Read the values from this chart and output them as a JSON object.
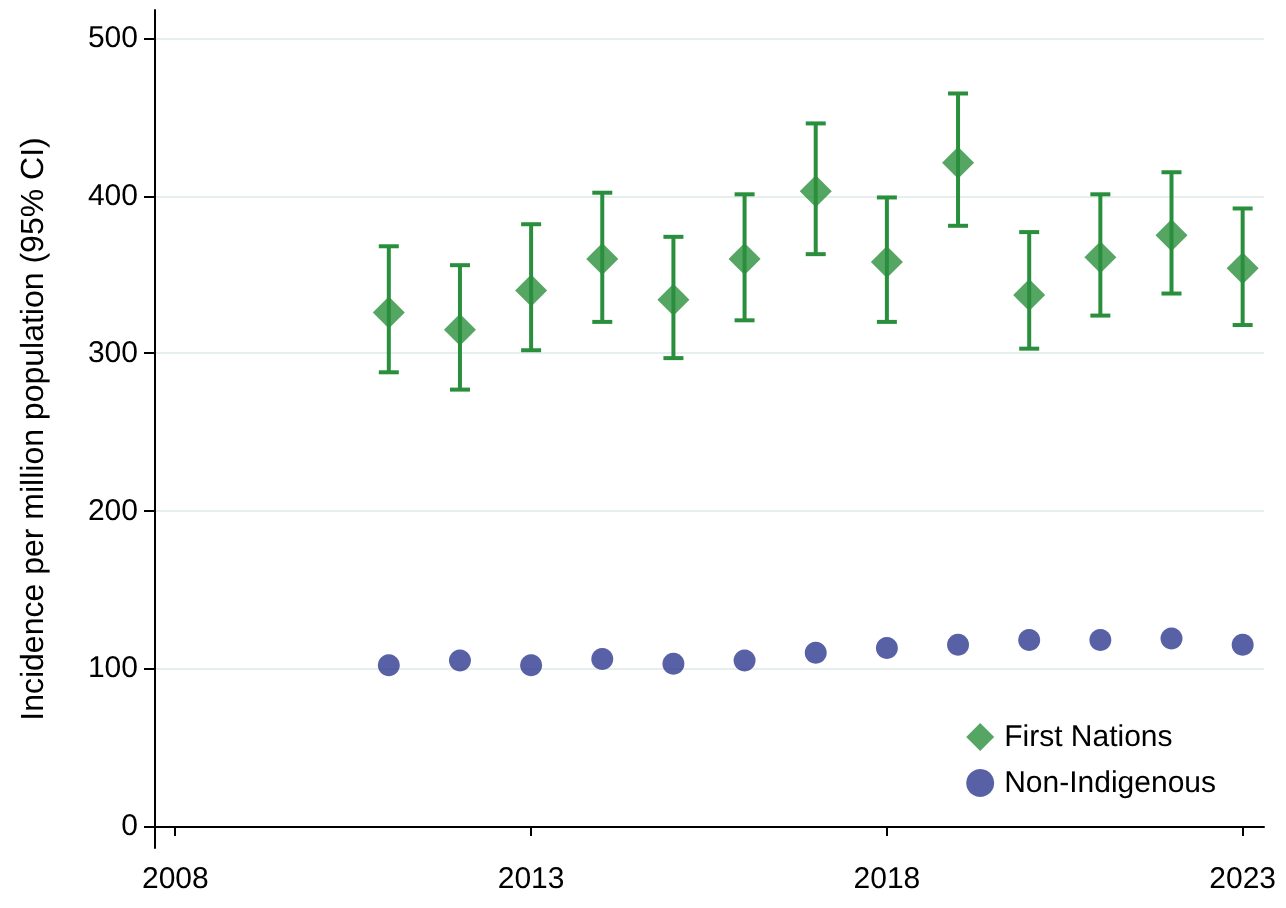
{
  "chart_data": {
    "type": "scatter",
    "ylabel": "Incidence per million population (95% CI)",
    "x": [
      2011,
      2012,
      2013,
      2014,
      2015,
      2016,
      2017,
      2018,
      2019,
      2020,
      2021,
      2022,
      2023
    ],
    "series": [
      {
        "name": "First Nations",
        "color": "#2a8f3c",
        "marker": "diamond",
        "values": [
          326,
          315,
          340,
          360,
          334,
          360,
          403,
          358,
          421,
          337,
          361,
          375,
          354
        ],
        "errors": [
          [
            288,
            368
          ],
          [
            277,
            356
          ],
          [
            302,
            382
          ],
          [
            320,
            402
          ],
          [
            297,
            374
          ],
          [
            321,
            401
          ],
          [
            363,
            446
          ],
          [
            320,
            399
          ],
          [
            381,
            465
          ],
          [
            303,
            377
          ],
          [
            324,
            401
          ],
          [
            338,
            415
          ],
          [
            318,
            392
          ]
        ]
      },
      {
        "name": "Non-Indigenous",
        "color": "#2e3a8f",
        "marker": "circle",
        "values": [
          102,
          105,
          102,
          106,
          103,
          105,
          110,
          113,
          115,
          118,
          118,
          119,
          115
        ]
      }
    ],
    "xlim": [
      2007.7,
      2023.3
    ],
    "xticks": [
      2008,
      2013,
      2018,
      2023
    ],
    "ylim": [
      -14,
      518
    ],
    "yticks": [
      0,
      100,
      200,
      300,
      400,
      500
    ],
    "grid": "y",
    "legend": "bottom right"
  }
}
